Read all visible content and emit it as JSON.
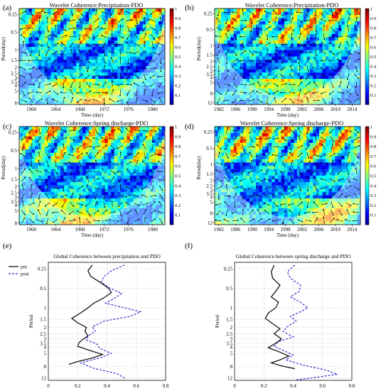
{
  "chart_data": [
    {
      "type": "heatmap",
      "panel_label": "(a)",
      "title": "Wavelet Coherence:Precipitation-PDO",
      "xlabel": "Time (day)",
      "ylabel": "Period(day)",
      "x_ticks": [
        "1960",
        "1964",
        "1968",
        "1972",
        "1976",
        "1980"
      ],
      "x_tick_values": [
        1960,
        1964,
        1968,
        1972,
        1976,
        1980
      ],
      "xlim": [
        1958,
        1982
      ],
      "y_ticks": [
        "0.25",
        "0.5",
        "1",
        "1.5",
        "2",
        "2.5",
        "3",
        "3.5",
        "4",
        "5",
        "8"
      ],
      "y_tick_values": [
        0.25,
        0.5,
        1,
        1.5,
        2,
        2.5,
        3,
        3.5,
        4,
        5,
        8
      ],
      "ylim": [
        0.2,
        8.5
      ],
      "y_scale": "log",
      "colorbar_ticks": [
        "0.1",
        "0.2",
        "0.3",
        "0.4",
        "0.5",
        "0.6",
        "0.7",
        "0.8",
        "0.9",
        "1"
      ],
      "colorbar_values": [
        0.1,
        0.2,
        0.3,
        0.4,
        0.5,
        0.6,
        0.7,
        0.8,
        0.9,
        1
      ],
      "seed": 11
    },
    {
      "type": "heatmap",
      "panel_label": "(b)",
      "title": "Wavelet Coherence:Precipitation-PDO",
      "xlabel": "Time (day)",
      "ylabel": "Period(day)",
      "x_ticks": [
        "1982",
        "1986",
        "1990",
        "1994",
        "1998",
        "2002",
        "2006",
        "2010",
        "2014"
      ],
      "x_tick_values": [
        1982,
        1986,
        1990,
        1994,
        1998,
        2002,
        2006,
        2010,
        2014
      ],
      "xlim": [
        1981,
        2016
      ],
      "y_ticks": [
        "0.25",
        "0.5",
        "1",
        "1.5",
        "2",
        "2.5",
        "3",
        "3.5",
        "4",
        "5",
        "8",
        "12"
      ],
      "y_tick_values": [
        0.25,
        0.5,
        1,
        1.5,
        2,
        2.5,
        3,
        3.5,
        4,
        5,
        8,
        12
      ],
      "ylim": [
        0.2,
        13
      ],
      "y_scale": "log",
      "colorbar_ticks": [
        "0.1",
        "0.2",
        "0.3",
        "0.4",
        "0.5",
        "0.6",
        "0.7",
        "0.8",
        "0.9",
        "1"
      ],
      "colorbar_values": [
        0.1,
        0.2,
        0.3,
        0.4,
        0.5,
        0.6,
        0.7,
        0.8,
        0.9,
        1
      ],
      "seed": 23
    },
    {
      "type": "heatmap",
      "panel_label": "(c)",
      "title": "Wavelet Coherence:Spring discharge-PDO",
      "xlabel": "Time (day)",
      "ylabel": "Period(day)",
      "x_ticks": [
        "1960",
        "1964",
        "1968",
        "1972",
        "1976",
        "1980"
      ],
      "x_tick_values": [
        1960,
        1964,
        1968,
        1972,
        1976,
        1980
      ],
      "xlim": [
        1958,
        1982
      ],
      "y_ticks": [
        "0.25",
        "0.5",
        "1",
        "1.5",
        "2",
        "2.5",
        "3",
        "3.5",
        "4",
        "5",
        "8"
      ],
      "y_tick_values": [
        0.25,
        0.5,
        1,
        1.5,
        2,
        2.5,
        3,
        3.5,
        4,
        5,
        8
      ],
      "ylim": [
        0.2,
        8.5
      ],
      "y_scale": "log",
      "colorbar_ticks": [
        "0.1",
        "0.2",
        "0.3",
        "0.4",
        "0.5",
        "0.6",
        "0.7",
        "0.8",
        "0.9",
        "1"
      ],
      "colorbar_values": [
        0.1,
        0.2,
        0.3,
        0.4,
        0.5,
        0.6,
        0.7,
        0.8,
        0.9,
        1
      ],
      "seed": 37
    },
    {
      "type": "heatmap",
      "panel_label": "(d)",
      "title": "Wavelet Coherence:Spring discharge-PDO",
      "xlabel": "Time (day)",
      "ylabel": "Period(day)",
      "x_ticks": [
        "1982",
        "1986",
        "1990",
        "1994",
        "1998",
        "2002",
        "2006",
        "2010",
        "2014"
      ],
      "x_tick_values": [
        1982,
        1986,
        1990,
        1994,
        1998,
        2002,
        2006,
        2010,
        2014
      ],
      "xlim": [
        1981,
        2016
      ],
      "y_ticks": [
        "0.25",
        "0.5",
        "1",
        "1.5",
        "2",
        "2.5",
        "3",
        "3.5",
        "4",
        "5",
        "8",
        "12"
      ],
      "y_tick_values": [
        0.25,
        0.5,
        1,
        1.5,
        2,
        2.5,
        3,
        3.5,
        4,
        5,
        8,
        12
      ],
      "ylim": [
        0.2,
        13
      ],
      "y_scale": "log",
      "colorbar_ticks": [
        "0.1",
        "0.2",
        "0.3",
        "0.4",
        "0.5",
        "0.6",
        "0.7",
        "0.8",
        "0.9",
        "1"
      ],
      "colorbar_values": [
        0.1,
        0.2,
        0.3,
        0.4,
        0.5,
        0.6,
        0.7,
        0.8,
        0.9,
        1
      ],
      "seed": 53
    },
    {
      "type": "line",
      "panel_label": "(e)",
      "title": "Global Coherence between precipitation and PDO",
      "xlabel": "",
      "ylabel": "Period",
      "xlim": [
        0,
        0.8
      ],
      "x_ticks": [
        "0",
        "0.2",
        "0.4",
        "0.6",
        "0.8"
      ],
      "x_tick_values": [
        0,
        0.2,
        0.4,
        0.6,
        0.8
      ],
      "ylim": [
        0.2,
        13
      ],
      "y_scale": "log",
      "y_ticks": [
        "0.25",
        "0.5",
        "1",
        "1.5",
        "2",
        "2.5",
        "3",
        "3.5",
        "4",
        "5",
        "8",
        "12"
      ],
      "y_tick_values": [
        0.25,
        0.5,
        1,
        1.5,
        2,
        2.5,
        3,
        3.5,
        4,
        5,
        8,
        12
      ],
      "grid": true,
      "legend_position": "top-left",
      "series": [
        {
          "name": "pre",
          "color": "#000000",
          "style": "solid",
          "points": [
            [
              0.3,
              0.22
            ],
            [
              0.27,
              0.27
            ],
            [
              0.29,
              0.33
            ],
            [
              0.35,
              0.4
            ],
            [
              0.41,
              0.5
            ],
            [
              0.43,
              0.58
            ],
            [
              0.38,
              0.7
            ],
            [
              0.31,
              0.85
            ],
            [
              0.27,
              1.0
            ],
            [
              0.22,
              1.2
            ],
            [
              0.16,
              1.45
            ],
            [
              0.2,
              1.7
            ],
            [
              0.26,
              2.0
            ],
            [
              0.25,
              2.3
            ],
            [
              0.27,
              2.7
            ],
            [
              0.24,
              3.0
            ],
            [
              0.21,
              3.4
            ],
            [
              0.2,
              3.9
            ],
            [
              0.28,
              4.5
            ],
            [
              0.37,
              5.2
            ],
            [
              0.3,
              5.9
            ],
            [
              0.2,
              6.7
            ],
            [
              0.14,
              7.4
            ]
          ]
        },
        {
          "name": "post",
          "color": "#3333cc",
          "style": "dashed",
          "points": [
            [
              0.52,
              0.22
            ],
            [
              0.43,
              0.27
            ],
            [
              0.38,
              0.33
            ],
            [
              0.36,
              0.4
            ],
            [
              0.42,
              0.5
            ],
            [
              0.5,
              0.6
            ],
            [
              0.45,
              0.72
            ],
            [
              0.39,
              0.85
            ],
            [
              0.52,
              1.0
            ],
            [
              0.63,
              1.15
            ],
            [
              0.56,
              1.35
            ],
            [
              0.38,
              1.6
            ],
            [
              0.3,
              1.95
            ],
            [
              0.32,
              2.3
            ],
            [
              0.27,
              2.7
            ],
            [
              0.26,
              3.1
            ],
            [
              0.33,
              3.6
            ],
            [
              0.35,
              4.2
            ],
            [
              0.43,
              5.0
            ],
            [
              0.36,
              5.8
            ],
            [
              0.22,
              7.0
            ],
            [
              0.31,
              8.5
            ],
            [
              0.47,
              10.3
            ],
            [
              0.52,
              12.0
            ]
          ]
        }
      ]
    },
    {
      "type": "line",
      "panel_label": "(f)",
      "title": "Global Coherence between spring discharge and PDO",
      "xlabel": "",
      "ylabel": "Period",
      "xlim": [
        0,
        0.8
      ],
      "x_ticks": [
        "0",
        "0.2",
        "0.4",
        "0.6",
        "0.8"
      ],
      "x_tick_values": [
        0,
        0.2,
        0.4,
        0.6,
        0.8
      ],
      "ylim": [
        0.2,
        13
      ],
      "y_scale": "log",
      "y_ticks": [
        "0.25",
        "0.5",
        "1",
        "1.5",
        "2",
        "2.5",
        "3",
        "3.5",
        "4",
        "5",
        "8",
        "12"
      ],
      "y_tick_values": [
        0.25,
        0.5,
        1,
        1.5,
        2,
        2.5,
        3,
        3.5,
        4,
        5,
        8,
        12
      ],
      "grid": true,
      "series": [
        {
          "name": "pre",
          "color": "#000000",
          "style": "solid",
          "points": [
            [
              0.27,
              0.22
            ],
            [
              0.25,
              0.28
            ],
            [
              0.26,
              0.35
            ],
            [
              0.31,
              0.45
            ],
            [
              0.28,
              0.56
            ],
            [
              0.25,
              0.68
            ],
            [
              0.3,
              0.82
            ],
            [
              0.28,
              1.0
            ],
            [
              0.23,
              1.2
            ],
            [
              0.21,
              1.45
            ],
            [
              0.26,
              1.75
            ],
            [
              0.31,
              2.1
            ],
            [
              0.27,
              2.5
            ],
            [
              0.32,
              3.0
            ],
            [
              0.28,
              3.5
            ],
            [
              0.23,
              4.1
            ],
            [
              0.3,
              4.7
            ],
            [
              0.37,
              5.5
            ],
            [
              0.31,
              6.3
            ],
            [
              0.25,
              7.0
            ],
            [
              0.33,
              7.9
            ],
            [
              0.41,
              8.6
            ]
          ]
        },
        {
          "name": "post",
          "color": "#3333cc",
          "style": "dashed",
          "points": [
            [
              0.41,
              0.22
            ],
            [
              0.36,
              0.28
            ],
            [
              0.38,
              0.35
            ],
            [
              0.45,
              0.45
            ],
            [
              0.44,
              0.56
            ],
            [
              0.38,
              0.68
            ],
            [
              0.45,
              0.82
            ],
            [
              0.5,
              1.0
            ],
            [
              0.45,
              1.15
            ],
            [
              0.38,
              1.35
            ],
            [
              0.42,
              1.6
            ],
            [
              0.36,
              1.95
            ],
            [
              0.33,
              2.3
            ],
            [
              0.4,
              2.8
            ],
            [
              0.3,
              3.3
            ],
            [
              0.27,
              3.9
            ],
            [
              0.33,
              4.5
            ],
            [
              0.4,
              5.3
            ],
            [
              0.35,
              6.3
            ],
            [
              0.47,
              7.6
            ],
            [
              0.62,
              9.0
            ],
            [
              0.7,
              10.5
            ],
            [
              0.52,
              12.0
            ],
            [
              0.42,
              12.8
            ]
          ]
        }
      ]
    }
  ]
}
